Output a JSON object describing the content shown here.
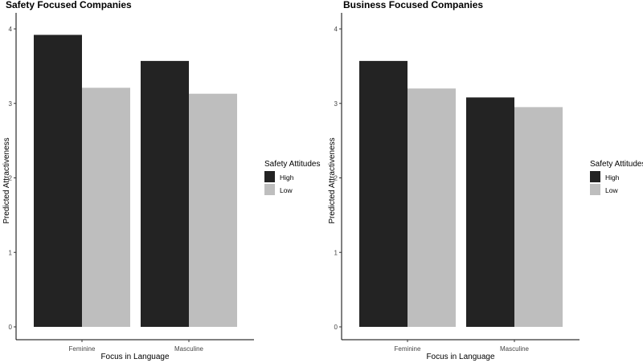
{
  "chart_data": [
    {
      "type": "bar",
      "title": "Safety Focused Companies",
      "xlabel": "Focus in Language",
      "ylabel": "Predicted Attractiveness",
      "categories": [
        "Feminine",
        "Masculine"
      ],
      "yticks": [
        "0",
        "1",
        "2",
        "3",
        "4"
      ],
      "ylim": [
        0,
        4.2
      ],
      "legend_title": "Safety Attitudes",
      "legend_position": "right",
      "series": [
        {
          "name": "High",
          "color": "#232323",
          "values": [
            3.92,
            3.57
          ]
        },
        {
          "name": "Low",
          "color": "#bebebe",
          "values": [
            3.21,
            3.13
          ]
        }
      ]
    },
    {
      "type": "bar",
      "title": "Business Focused Companies",
      "xlabel": "Focus in Language",
      "ylabel": "Predicted Attractiveness",
      "categories": [
        "Feminine",
        "Masculine"
      ],
      "yticks": [
        "0",
        "1",
        "2",
        "3",
        "4"
      ],
      "ylim": [
        0,
        4.2
      ],
      "legend_title": "Safety Attitudes",
      "legend_position": "right",
      "series": [
        {
          "name": "High",
          "color": "#232323",
          "values": [
            3.57,
            3.08
          ]
        },
        {
          "name": "Low",
          "color": "#bebebe",
          "values": [
            3.2,
            2.95
          ]
        }
      ]
    }
  ]
}
